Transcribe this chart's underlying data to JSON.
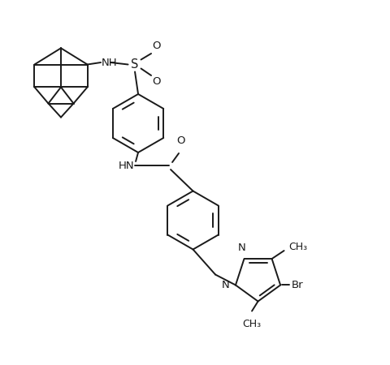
{
  "bg_color": "#ffffff",
  "line_color": "#1a1a1a",
  "line_width": 1.4,
  "font_size": 9.5,
  "fig_width": 4.8,
  "fig_height": 4.5,
  "dpi": 100,
  "xlim": [
    0,
    9.6
  ],
  "ylim": [
    0,
    9.0
  ]
}
